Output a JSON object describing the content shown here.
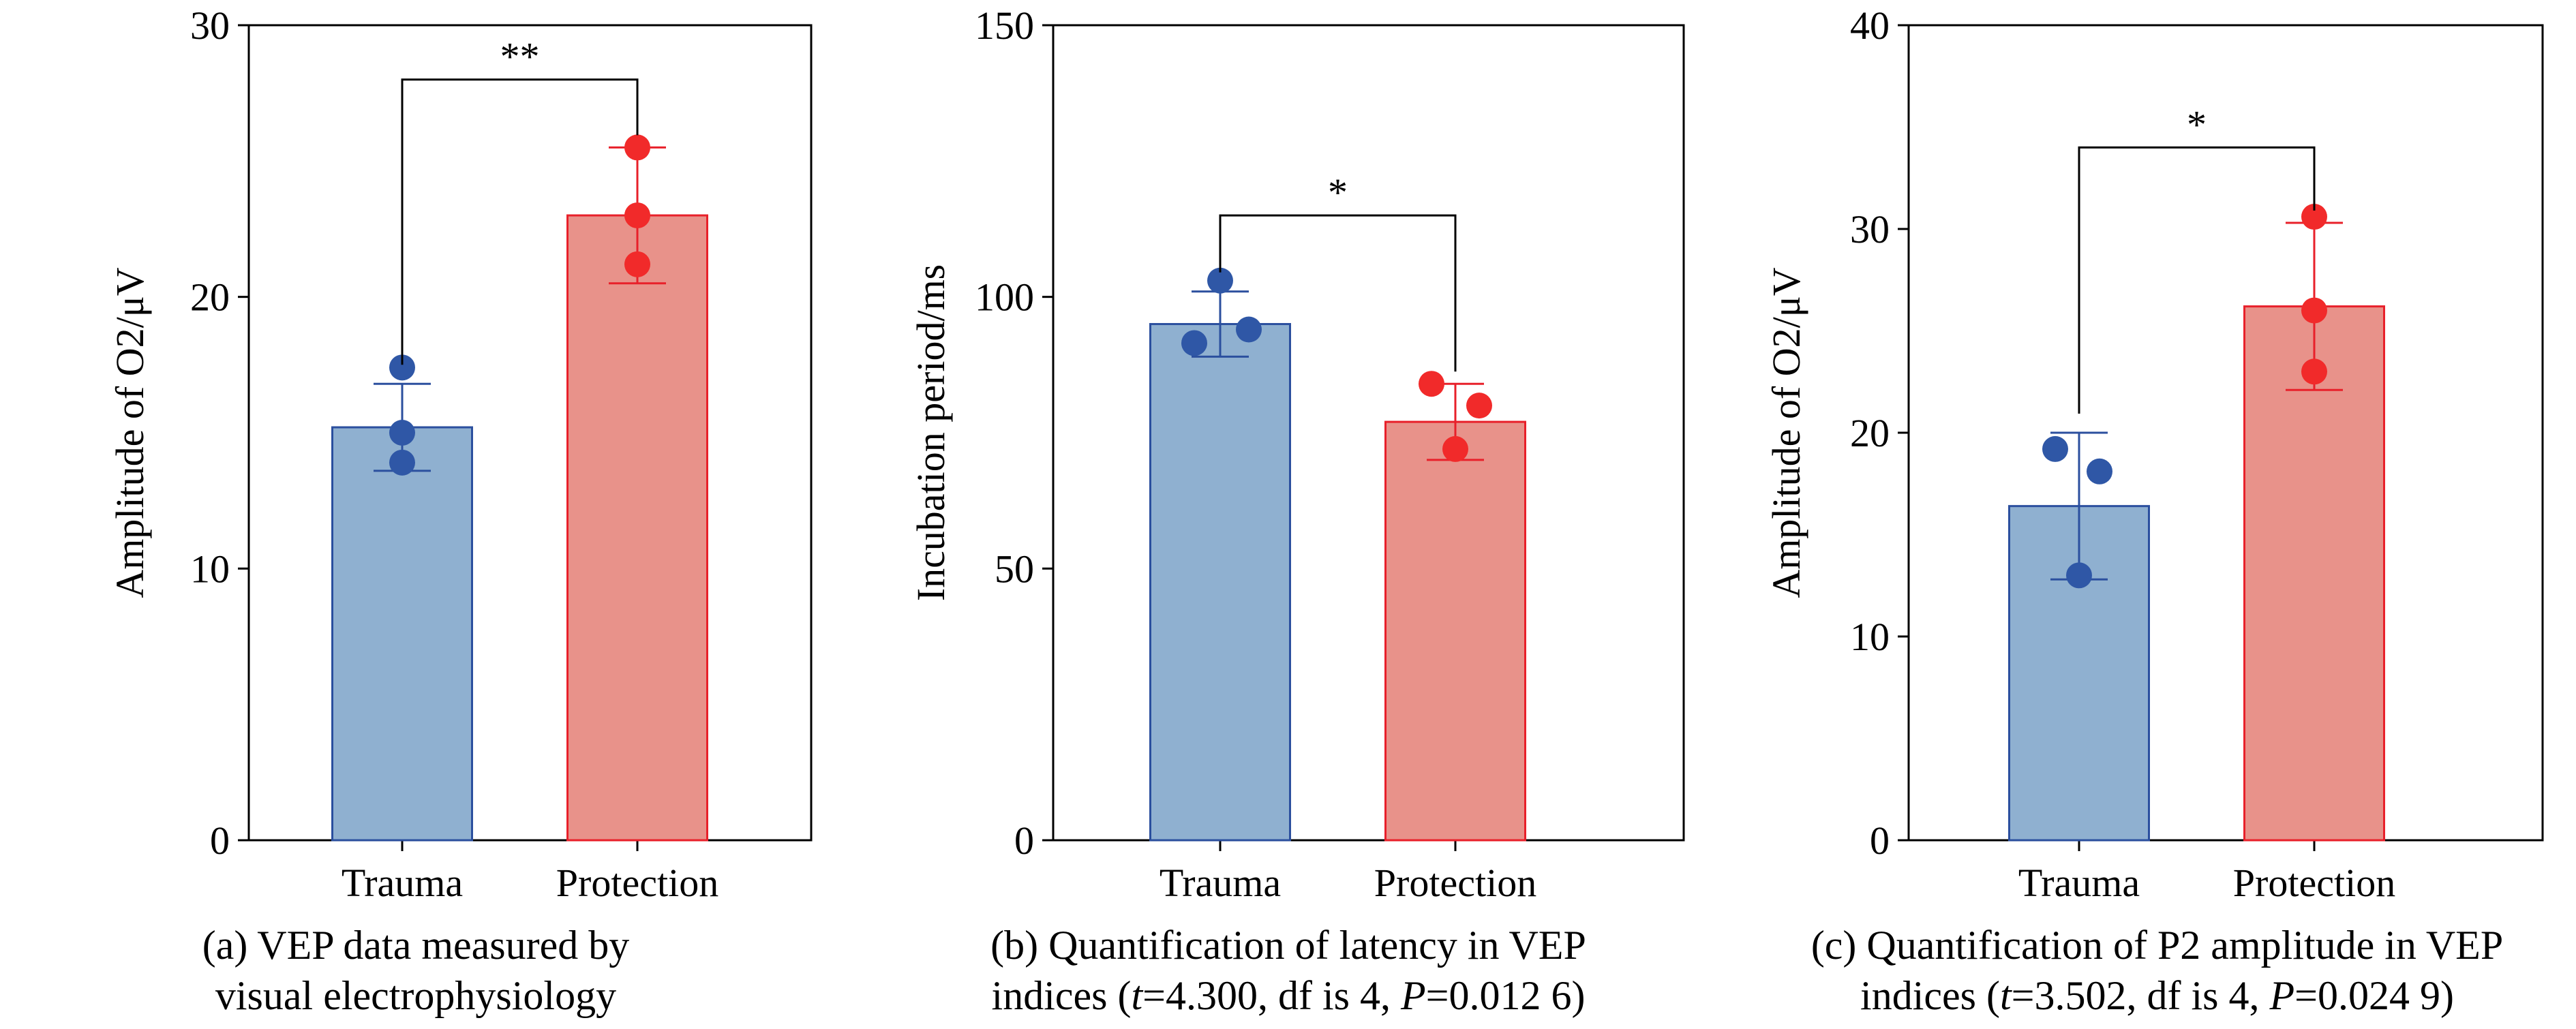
{
  "chart_data": [
    {
      "type": "bar",
      "title": "",
      "xlabel": "",
      "ylabel": "Amplitude of O2/μV",
      "ylim": [
        0,
        30
      ],
      "yticks": [
        0,
        10,
        20,
        30
      ],
      "categories": [
        "Trauma",
        "Protection"
      ],
      "values": [
        15.2,
        23.0
      ],
      "error": [
        1.6,
        2.5
      ],
      "points": [
        [
          17.4,
          15.0,
          13.9
        ],
        [
          25.5,
          23.0,
          21.2
        ]
      ],
      "significance": "**",
      "colors": {
        "bar_fill": [
          "#8fb0d0",
          "#e8928a"
        ],
        "bar_edge": [
          "#2b4f9e",
          "#e8202a"
        ],
        "dot": [
          "#2f57a6",
          "#f12a2a"
        ]
      },
      "caption": {
        "lines": [
          "(a) VEP data measured by",
          "visual electrophysiology"
        ]
      }
    },
    {
      "type": "bar",
      "title": "",
      "xlabel": "",
      "ylabel": "Incubation period/ms",
      "ylim": [
        0,
        150
      ],
      "yticks": [
        0,
        50,
        100,
        150
      ],
      "categories": [
        "Trauma",
        "Protection"
      ],
      "values": [
        95.0,
        77.0
      ],
      "error": [
        6.0,
        7.0
      ],
      "points": [
        [
          103.0,
          94.0,
          91.5
        ],
        [
          84.0,
          80.0,
          72.0
        ]
      ],
      "significance": "*",
      "colors": {
        "bar_fill": [
          "#8fb0d0",
          "#e8928a"
        ],
        "bar_edge": [
          "#2b4f9e",
          "#e8202a"
        ],
        "dot": [
          "#2f57a6",
          "#f12a2a"
        ]
      },
      "caption": {
        "lines": [
          "(b) Quantification of latency in VEP",
          "indices (t=4.300, df is 4, P=0.012 6)"
        ]
      }
    },
    {
      "type": "bar",
      "title": "",
      "xlabel": "",
      "ylabel": "Amplitude of O2/μV",
      "ylim": [
        0,
        40
      ],
      "yticks": [
        0,
        10,
        20,
        30,
        40
      ],
      "categories": [
        "Trauma",
        "Protection"
      ],
      "values": [
        16.4,
        26.2
      ],
      "error": [
        3.6,
        4.1
      ],
      "points": [
        [
          19.2,
          18.1,
          13.0
        ],
        [
          30.6,
          26.0,
          23.0
        ]
      ],
      "significance": "*",
      "colors": {
        "bar_fill": [
          "#8fb0d0",
          "#e8928a"
        ],
        "bar_edge": [
          "#2b4f9e",
          "#e8202a"
        ],
        "dot": [
          "#2f57a6",
          "#f12a2a"
        ]
      },
      "caption": {
        "lines": [
          "(c) Quantification of P2 amplitude in VEP",
          "indices (t=3.502, df is 4, P=0.024 9)"
        ]
      }
    }
  ]
}
